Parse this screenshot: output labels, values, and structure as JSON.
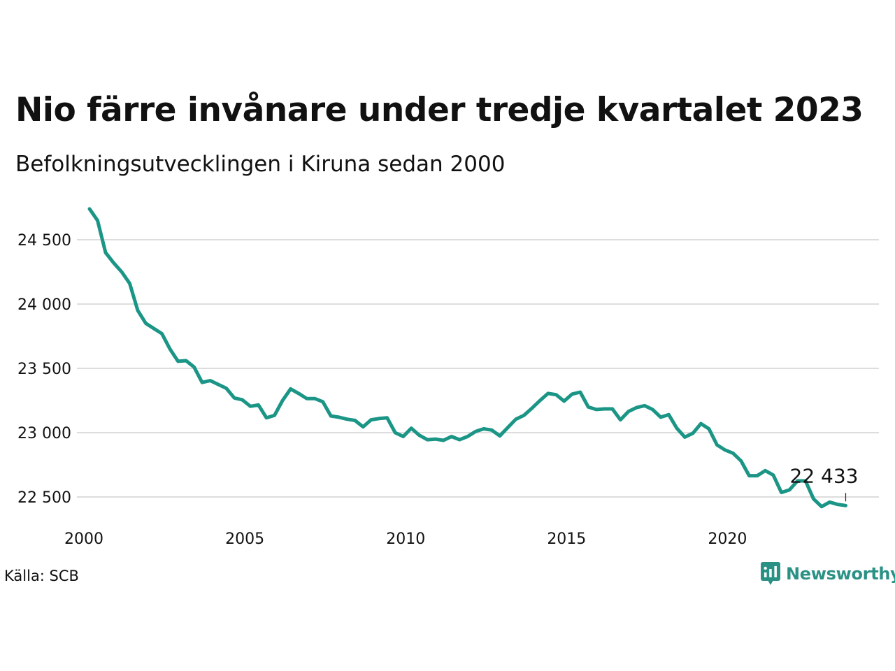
{
  "title": "Nio färre invånare under tredje kvartalet 2023",
  "subtitle": "Befolkningsutvecklingen i Kiruna sedan 2000",
  "source": "Källa: SCB",
  "brand": {
    "name": "Newsworthy",
    "icon": "newsworthy-logo-icon",
    "color": "#2a9185"
  },
  "chart_data": {
    "type": "line",
    "title": "Nio färre invånare under tredje kvartalet 2023",
    "subtitle": "Befolkningsutvecklingen i Kiruna sedan 2000",
    "xlabel": "",
    "ylabel": "",
    "xlim": [
      2000.0,
      2023.75
    ],
    "ylim": [
      22300,
      24800
    ],
    "x_ticks": [
      {
        "value": 2000,
        "label": "2000"
      },
      {
        "value": 2005,
        "label": "2005"
      },
      {
        "value": 2010,
        "label": "2010"
      },
      {
        "value": 2015,
        "label": "2015"
      },
      {
        "value": 2020,
        "label": "2020"
      }
    ],
    "y_ticks": [
      {
        "value": 22500,
        "label": "22 500"
      },
      {
        "value": 23000,
        "label": "23 000"
      },
      {
        "value": 23500,
        "label": "23 500"
      },
      {
        "value": 24000,
        "label": "24 000"
      },
      {
        "value": 24500,
        "label": "24 500"
      }
    ],
    "grid": "horizontal",
    "line_color": "#1a9586",
    "grid_color": "#dddddd",
    "annotation": {
      "x": 2023.5,
      "y": 22433,
      "label": "22 433"
    },
    "series": [
      {
        "x": [
          2000.0,
          2000.25,
          2000.5,
          2000.75,
          2001.0,
          2001.25,
          2001.5,
          2001.75,
          2002.0,
          2002.25,
          2002.5,
          2002.75,
          2003.0,
          2003.25,
          2003.5,
          2003.75,
          2004.0,
          2004.25,
          2004.5,
          2004.75,
          2005.0,
          2005.25,
          2005.5,
          2005.75,
          2006.0,
          2006.25,
          2006.5,
          2006.75,
          2007.0,
          2007.25,
          2007.5,
          2007.75,
          2008.0,
          2008.25,
          2008.5,
          2008.75,
          2009.0,
          2009.25,
          2009.5,
          2009.75,
          2010.0,
          2010.25,
          2010.5,
          2010.75,
          2011.0,
          2011.25,
          2011.5,
          2011.75,
          2012.0,
          2012.25,
          2012.5,
          2012.75,
          2013.0,
          2013.25,
          2013.5,
          2013.75,
          2014.0,
          2014.25,
          2014.5,
          2014.75,
          2015.0,
          2015.25,
          2015.5,
          2015.75,
          2016.0,
          2016.25,
          2016.5,
          2016.75,
          2017.0,
          2017.25,
          2017.5,
          2017.75,
          2018.0,
          2018.25,
          2018.5,
          2018.75,
          2019.0,
          2019.25,
          2019.5,
          2019.75,
          2020.0,
          2020.25,
          2020.5,
          2020.75,
          2021.0,
          2021.25,
          2021.5,
          2021.75,
          2022.0,
          2022.25,
          2022.5,
          2022.75,
          2023.0,
          2023.25,
          2023.5
        ],
        "values": [
          24740,
          24650,
          24400,
          24320,
          24250,
          24160,
          23950,
          23850,
          23810,
          23770,
          23650,
          23555,
          23560,
          23510,
          23390,
          23405,
          23375,
          23345,
          23270,
          23255,
          23205,
          23215,
          23115,
          23135,
          23250,
          23340,
          23305,
          23265,
          23265,
          23240,
          23130,
          23120,
          23105,
          23095,
          23045,
          23100,
          23110,
          23115,
          23000,
          22970,
          23035,
          22980,
          22945,
          22950,
          22940,
          22970,
          22945,
          22970,
          23010,
          23030,
          23020,
          22975,
          23040,
          23105,
          23135,
          23190,
          23250,
          23305,
          23295,
          23245,
          23300,
          23315,
          23200,
          23180,
          23185,
          23185,
          23100,
          23165,
          23195,
          23210,
          23180,
          23120,
          23140,
          23035,
          22965,
          22995,
          23070,
          23030,
          22905,
          22865,
          22840,
          22780,
          22665,
          22665,
          22705,
          22670,
          22535,
          22555,
          22625,
          22625,
          22485,
          22425,
          22460,
          22442,
          22433
        ]
      }
    ]
  }
}
